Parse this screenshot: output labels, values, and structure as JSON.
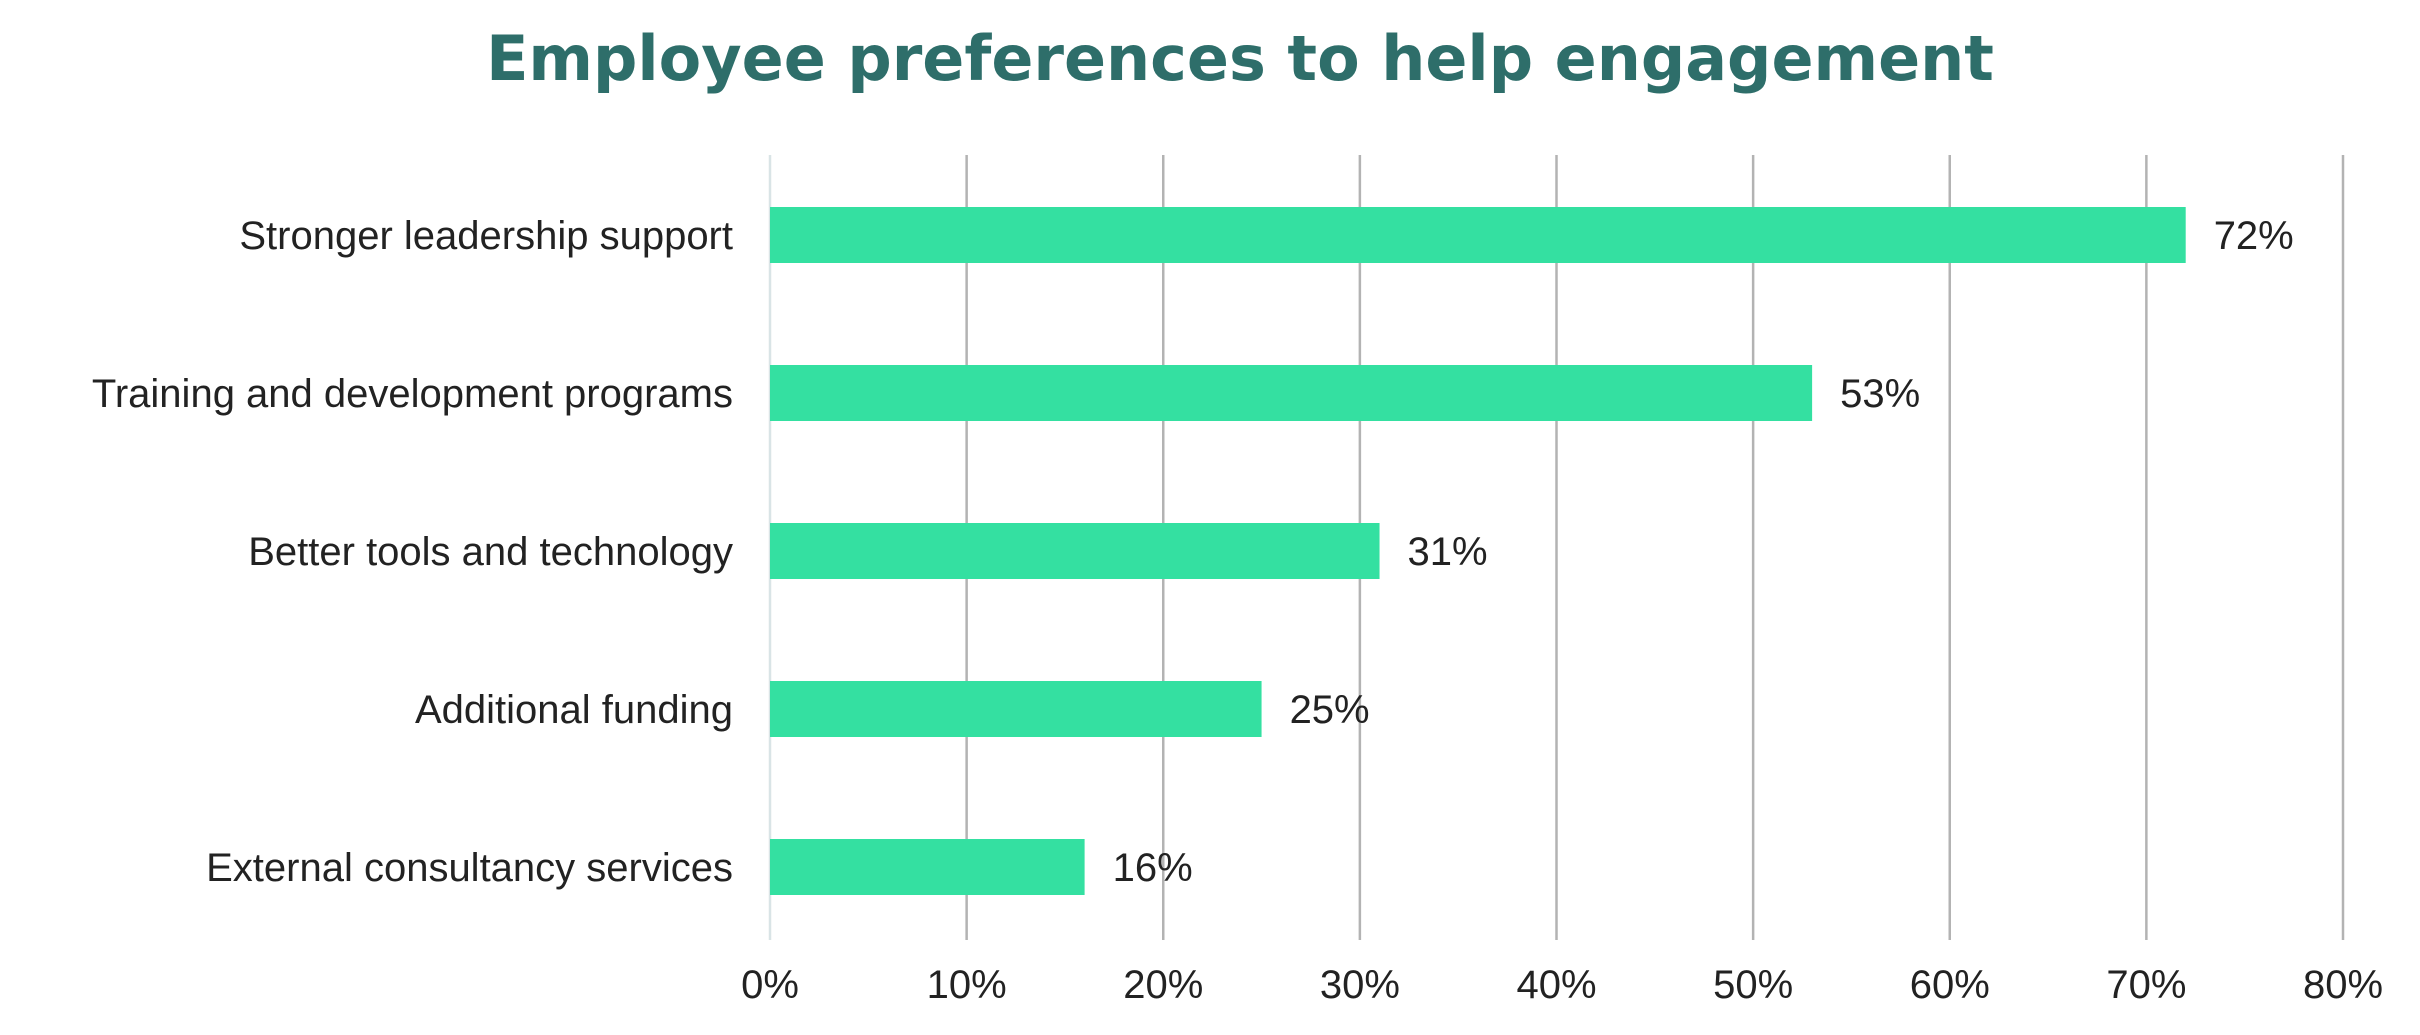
{
  "chart_data": {
    "type": "bar",
    "orientation": "horizontal",
    "title": "Employee preferences to help engagement",
    "categories": [
      "Stronger leadership support",
      "Training and development programs",
      "Better tools and technology",
      "Additional funding",
      "External consultancy services"
    ],
    "values": [
      72,
      53,
      31,
      25,
      16
    ],
    "data_labels": [
      "72%",
      "53%",
      "31%",
      "25%",
      "16%"
    ],
    "xlim": [
      0,
      80
    ],
    "x_ticks": [
      0,
      10,
      20,
      30,
      40,
      50,
      60,
      70,
      80
    ],
    "x_tick_labels": [
      "0%",
      "10%",
      "20%",
      "30%",
      "40%",
      "50%",
      "60%",
      "70%",
      "80%"
    ],
    "xlabel": "",
    "ylabel": "",
    "grid": "vertical",
    "legend": "none",
    "colors": {
      "bar": "#34e0a1",
      "title": "#2e6e6a",
      "grid": "#b3b3b3",
      "text": "#222222"
    }
  }
}
